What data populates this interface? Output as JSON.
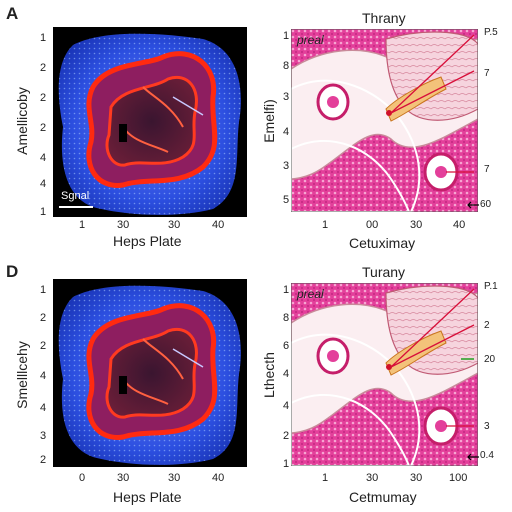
{
  "figure": {
    "top": {
      "letter": "A",
      "left": {
        "ylabel": "Amellicoby",
        "xlabel": "Heps Plate",
        "yticks": [
          "1",
          "2",
          "2",
          "2",
          "4",
          "4",
          "1"
        ],
        "xticks": [
          "1",
          "30",
          "30",
          "40"
        ],
        "scalebar": "Sgnal"
      },
      "right": {
        "title": "Thrany",
        "corner_label": "preal",
        "ylabel": "Emelfi)",
        "xlabel": "Cetuximay",
        "yticks": [
          "1",
          "8",
          "3",
          "4",
          "3",
          "5"
        ],
        "xticks": [
          "1",
          "00",
          "30",
          "40"
        ],
        "callouts": [
          "P.5",
          "7",
          "7",
          "60"
        ]
      }
    },
    "bottom": {
      "letter": "D",
      "left": {
        "ylabel": "Smelllcehy",
        "xlabel": "Heps Plate",
        "yticks": [
          "1",
          "2",
          "2",
          "4",
          "4",
          "3",
          "2"
        ],
        "xticks": [
          "0",
          "30",
          "30",
          "40"
        ]
      },
      "right": {
        "title": "Turany",
        "corner_label": "preal",
        "ylabel": "Lthecth",
        "xlabel": "Cetmumay",
        "yticks": [
          "1",
          "8",
          "6",
          "4",
          "4",
          "2",
          "1"
        ],
        "xticks": [
          "1",
          "30",
          "30",
          "100"
        ],
        "callouts": [
          "P.1",
          "2",
          "20",
          "3",
          "0.4"
        ]
      }
    }
  }
}
